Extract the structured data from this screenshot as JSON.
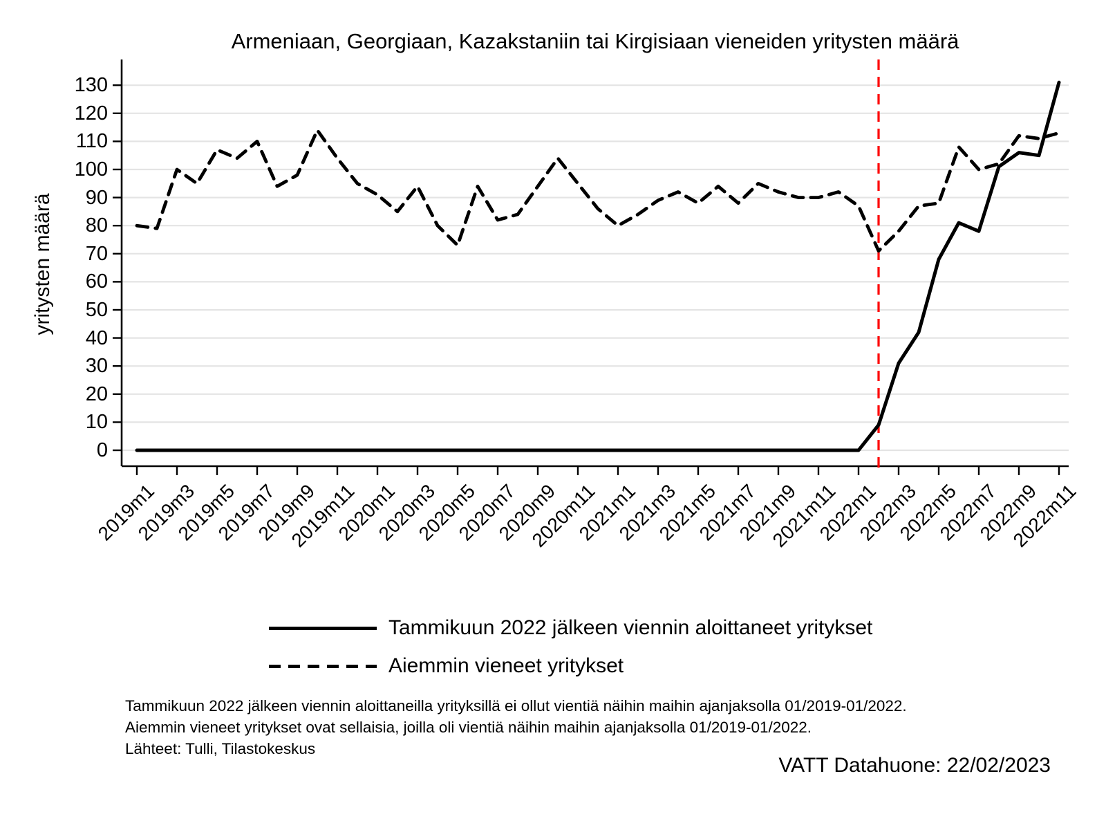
{
  "title": "Armeniaan, Georgiaan, Kazakstaniin tai Kirgisiaan vieneiden yritysten määrä",
  "y_axis_title": "yritysten määrä",
  "legend": [
    {
      "label": "Tammikuun 2022 jälkeen viennin aloittaneet yritykset",
      "style": "solid"
    },
    {
      "label": "Aiemmin vieneet yritykset",
      "style": "dashed"
    }
  ],
  "notes": [
    "Tammikuun 2022 jälkeen viennin aloittaneilla yrityksillä ei ollut vientiä näihin maihin ajanjaksolla 01/2019-01/2022.",
    "Aiemmin vieneet yritykset ovat sellaisia, joilla oli vientiä näihin maihin ajanjaksolla 01/2019-01/2022.",
    "Lähteet: Tulli, Tilastokeskus"
  ],
  "credit": "VATT Datahuone: 22/02/2023",
  "colors": {
    "series": "#000000",
    "event_line": "#fe0000",
    "gridline": "#e4e4e4",
    "axis": "#000000"
  },
  "chart_data": {
    "type": "line",
    "title": "Armeniaan, Georgiaan, Kazakstaniin tai Kirgisiaan vieneiden yritysten määrä",
    "xlabel": "",
    "ylabel": "yritysten määrä",
    "x_start": "2019m1",
    "x_frequency": "monthly",
    "n_points": 47,
    "x_tick_labels": [
      "2019m1",
      "2019m3",
      "2019m5",
      "2019m7",
      "2019m9",
      "2019m11",
      "2020m1",
      "2020m3",
      "2020m5",
      "2020m7",
      "2020m9",
      "2020m11",
      "2021m1",
      "2021m3",
      "2021m5",
      "2021m7",
      "2021m9",
      "2021m11",
      "2022m1",
      "2022m3",
      "2022m5",
      "2022m7",
      "2022m9",
      "2022m11"
    ],
    "x_tick_step": 2,
    "ylim": [
      0,
      130
    ],
    "ytick_step": 10,
    "grid": true,
    "legend_position": "bottom",
    "vline": {
      "x_label": "2022m2",
      "x_index": 37,
      "color": "#fe0000",
      "style": "dashed"
    },
    "series": [
      {
        "name": "Tammikuun 2022 jälkeen viennin aloittaneet yritykset",
        "style": "solid",
        "values": [
          0,
          0,
          0,
          0,
          0,
          0,
          0,
          0,
          0,
          0,
          0,
          0,
          0,
          0,
          0,
          0,
          0,
          0,
          0,
          0,
          0,
          0,
          0,
          0,
          0,
          0,
          0,
          0,
          0,
          0,
          0,
          0,
          0,
          0,
          0,
          0,
          0,
          9,
          31,
          42,
          68,
          81,
          78,
          101,
          106,
          105,
          131
        ]
      },
      {
        "name": "Aiemmin vieneet yritykset",
        "style": "dashed",
        "values": [
          80,
          79,
          100,
          95,
          107,
          104,
          110,
          94,
          98,
          114,
          104,
          95,
          91,
          85,
          94,
          80,
          73,
          94,
          82,
          84,
          94,
          104,
          95,
          86,
          80,
          84,
          89,
          92,
          88,
          94,
          88,
          95,
          92,
          90,
          90,
          92,
          87,
          71,
          78,
          87,
          88,
          108,
          100,
          102,
          112,
          111,
          113
        ]
      }
    ]
  }
}
